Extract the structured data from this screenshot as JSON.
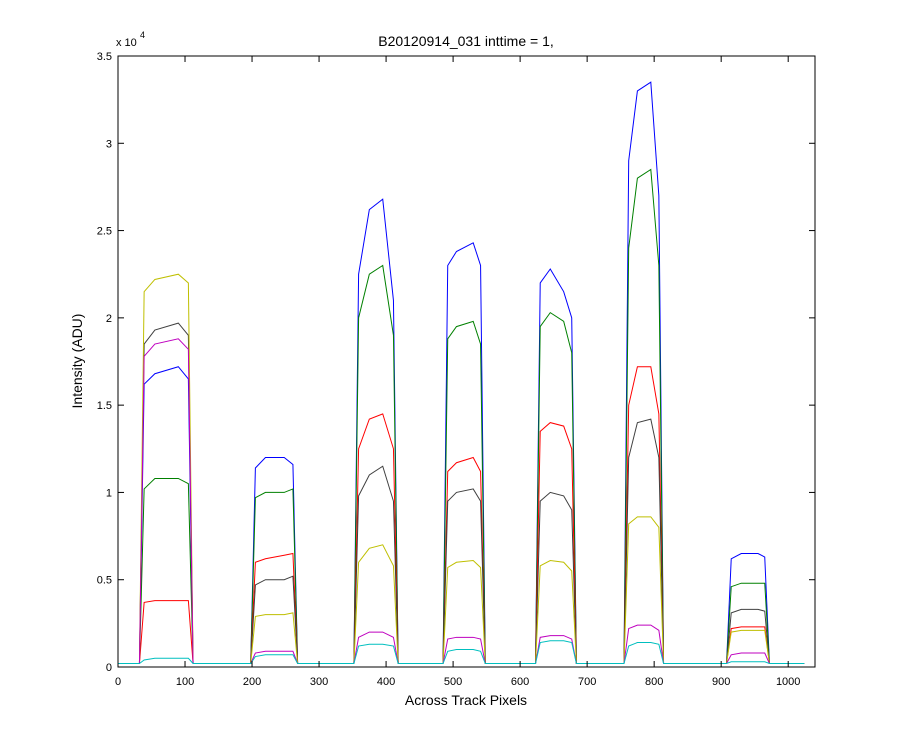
{
  "chart_data": {
    "type": "line",
    "title": "B20120914_031 inttime = 1,",
    "x_label": "Across Track Pixels",
    "y_label": "Intensity (ADU)",
    "y_exponent": {
      "base": "x 10",
      "power": "4"
    },
    "xlim": [
      0,
      1040
    ],
    "ylim": [
      0,
      3.5
    ],
    "xticks": [
      0,
      100,
      200,
      300,
      400,
      500,
      600,
      700,
      800,
      900,
      1000
    ],
    "yticks": [
      0,
      0.5,
      1,
      1.5,
      2,
      2.5,
      3,
      3.5
    ],
    "x": [
      0,
      32,
      39,
      55,
      90,
      105,
      112,
      198,
      205,
      220,
      248,
      261,
      268,
      352,
      359,
      375,
      395,
      411,
      418,
      485,
      492,
      505,
      530,
      541,
      548,
      623,
      630,
      645,
      665,
      677,
      684,
      755,
      762,
      775,
      795,
      807,
      814,
      908,
      915,
      930,
      955,
      965,
      972,
      1024
    ],
    "series": [
      {
        "color": "#0000ff",
        "values": [
          0.02,
          0.02,
          1.62,
          1.68,
          1.72,
          1.65,
          0.02,
          0.02,
          1.14,
          1.2,
          1.2,
          1.16,
          0.02,
          0.02,
          2.25,
          2.62,
          2.68,
          2.1,
          0.02,
          0.02,
          2.3,
          2.38,
          2.43,
          2.3,
          0.02,
          0.02,
          2.2,
          2.28,
          2.15,
          2.0,
          0.02,
          0.02,
          2.9,
          3.3,
          3.35,
          2.7,
          0.02,
          0.02,
          0.62,
          0.65,
          0.65,
          0.63,
          0.02,
          0.02
        ]
      },
      {
        "color": "#008000",
        "values": [
          0.02,
          0.02,
          1.02,
          1.08,
          1.08,
          1.05,
          0.02,
          0.02,
          0.97,
          1.0,
          1.0,
          1.02,
          0.02,
          0.02,
          2.0,
          2.25,
          2.3,
          1.9,
          0.02,
          0.02,
          1.88,
          1.95,
          1.98,
          1.85,
          0.02,
          0.02,
          1.95,
          2.03,
          1.98,
          1.8,
          0.02,
          0.02,
          2.4,
          2.8,
          2.85,
          2.3,
          0.02,
          0.02,
          0.46,
          0.48,
          0.48,
          0.48,
          0.02,
          0.02
        ]
      },
      {
        "color": "#ff0000",
        "values": [
          0.02,
          0.02,
          0.37,
          0.38,
          0.38,
          0.38,
          0.02,
          0.02,
          0.6,
          0.62,
          0.64,
          0.65,
          0.02,
          0.02,
          1.25,
          1.42,
          1.45,
          1.25,
          0.02,
          0.02,
          1.12,
          1.17,
          1.2,
          1.12,
          0.02,
          0.02,
          1.35,
          1.4,
          1.38,
          1.25,
          0.02,
          0.02,
          1.5,
          1.72,
          1.72,
          1.45,
          0.02,
          0.02,
          0.22,
          0.23,
          0.23,
          0.23,
          0.02,
          0.02
        ]
      },
      {
        "color": "#404040",
        "values": [
          0.02,
          0.02,
          1.85,
          1.93,
          1.97,
          1.9,
          0.02,
          0.02,
          0.47,
          0.5,
          0.5,
          0.52,
          0.02,
          0.02,
          0.98,
          1.1,
          1.15,
          0.95,
          0.02,
          0.02,
          0.95,
          1.0,
          1.02,
          0.95,
          0.02,
          0.02,
          0.95,
          1.0,
          0.98,
          0.9,
          0.02,
          0.02,
          1.2,
          1.4,
          1.42,
          1.2,
          0.02,
          0.02,
          0.31,
          0.33,
          0.33,
          0.32,
          0.02,
          0.02
        ]
      },
      {
        "color": "#bfbf00",
        "values": [
          0.02,
          0.02,
          2.15,
          2.22,
          2.25,
          2.2,
          0.02,
          0.02,
          0.29,
          0.3,
          0.3,
          0.31,
          0.02,
          0.02,
          0.6,
          0.68,
          0.7,
          0.58,
          0.02,
          0.02,
          0.57,
          0.6,
          0.61,
          0.57,
          0.02,
          0.02,
          0.58,
          0.61,
          0.6,
          0.55,
          0.02,
          0.02,
          0.82,
          0.86,
          0.86,
          0.8,
          0.02,
          0.02,
          0.2,
          0.21,
          0.21,
          0.21,
          0.02,
          0.02
        ]
      },
      {
        "color": "#bf00bf",
        "values": [
          0.02,
          0.02,
          1.78,
          1.85,
          1.88,
          1.82,
          0.02,
          0.02,
          0.08,
          0.09,
          0.09,
          0.09,
          0.02,
          0.02,
          0.17,
          0.2,
          0.2,
          0.17,
          0.02,
          0.02,
          0.16,
          0.17,
          0.17,
          0.16,
          0.02,
          0.02,
          0.17,
          0.18,
          0.18,
          0.16,
          0.02,
          0.02,
          0.22,
          0.24,
          0.24,
          0.21,
          0.02,
          0.02,
          0.07,
          0.08,
          0.08,
          0.08,
          0.02,
          0.02
        ]
      },
      {
        "color": "#00bfbf",
        "values": [
          0.02,
          0.02,
          0.04,
          0.05,
          0.05,
          0.05,
          0.02,
          0.02,
          0.06,
          0.07,
          0.07,
          0.07,
          0.02,
          0.02,
          0.12,
          0.13,
          0.13,
          0.12,
          0.02,
          0.02,
          0.09,
          0.1,
          0.1,
          0.09,
          0.02,
          0.02,
          0.14,
          0.15,
          0.15,
          0.14,
          0.02,
          0.02,
          0.12,
          0.14,
          0.14,
          0.13,
          0.02,
          0.02,
          0.03,
          0.03,
          0.03,
          0.03,
          0.02,
          0.02
        ]
      }
    ]
  }
}
